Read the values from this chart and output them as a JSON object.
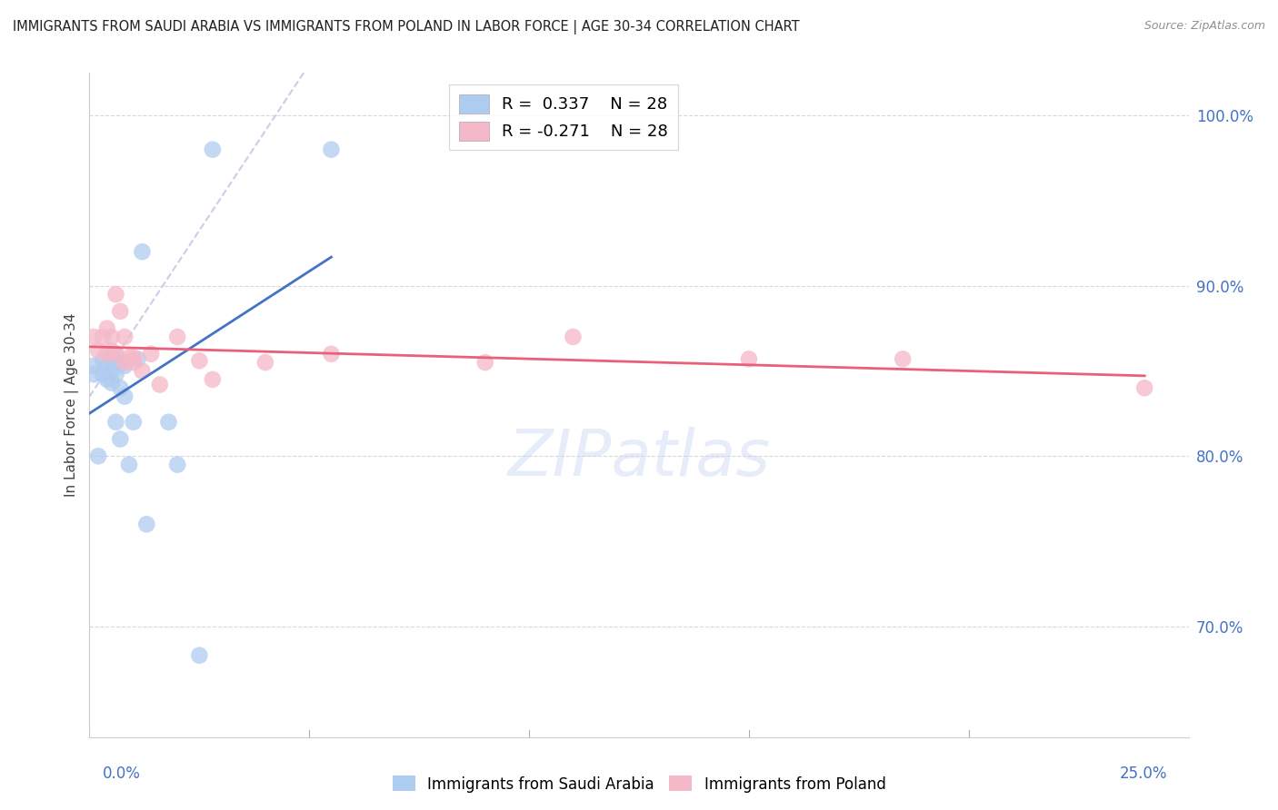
{
  "title": "IMMIGRANTS FROM SAUDI ARABIA VS IMMIGRANTS FROM POLAND IN LABOR FORCE | AGE 30-34 CORRELATION CHART",
  "source": "Source: ZipAtlas.com",
  "ylabel": "In Labor Force | Age 30-34",
  "ytick_labels": [
    "100.0%",
    "90.0%",
    "80.0%",
    "70.0%"
  ],
  "ytick_values": [
    1.0,
    0.9,
    0.8,
    0.7
  ],
  "xlim": [
    0.0,
    0.25
  ],
  "ylim": [
    0.635,
    1.025
  ],
  "r_saudi": 0.337,
  "n_saudi": 28,
  "r_poland": -0.271,
  "n_poland": 28,
  "saudi_color": "#aecbf0",
  "poland_color": "#f5b8c8",
  "saudi_line_color": "#4472c4",
  "poland_line_color": "#e8607a",
  "diagonal_color": "#c8d0e8",
  "background_color": "#ffffff",
  "grid_color": "#d8d8d8",
  "title_color": "#202020",
  "axis_label_color": "#4472c4",
  "saudi_x": [
    0.001,
    0.001,
    0.002,
    0.003,
    0.003,
    0.004,
    0.004,
    0.005,
    0.005,
    0.005,
    0.006,
    0.006,
    0.006,
    0.007,
    0.007,
    0.007,
    0.008,
    0.008,
    0.009,
    0.01,
    0.011,
    0.012,
    0.013,
    0.018,
    0.02,
    0.025,
    0.028,
    0.055
  ],
  "saudi_y": [
    0.853,
    0.848,
    0.8,
    0.856,
    0.848,
    0.853,
    0.845,
    0.858,
    0.85,
    0.843,
    0.86,
    0.848,
    0.82,
    0.855,
    0.84,
    0.81,
    0.853,
    0.835,
    0.795,
    0.82,
    0.857,
    0.92,
    0.76,
    0.82,
    0.795,
    0.683,
    0.98,
    0.98
  ],
  "poland_x": [
    0.001,
    0.002,
    0.003,
    0.004,
    0.004,
    0.005,
    0.005,
    0.006,
    0.006,
    0.007,
    0.008,
    0.008,
    0.009,
    0.01,
    0.01,
    0.012,
    0.014,
    0.016,
    0.02,
    0.025,
    0.028,
    0.04,
    0.055,
    0.09,
    0.11,
    0.15,
    0.185,
    0.24
  ],
  "poland_y": [
    0.87,
    0.862,
    0.87,
    0.875,
    0.86,
    0.87,
    0.862,
    0.895,
    0.86,
    0.885,
    0.87,
    0.855,
    0.858,
    0.858,
    0.855,
    0.85,
    0.86,
    0.842,
    0.87,
    0.856,
    0.845,
    0.855,
    0.86,
    0.855,
    0.87,
    0.857,
    0.857,
    0.84
  ],
  "legend_saudi_label": "Immigrants from Saudi Arabia",
  "legend_poland_label": "Immigrants from Poland",
  "watermark": "ZIPatlas"
}
